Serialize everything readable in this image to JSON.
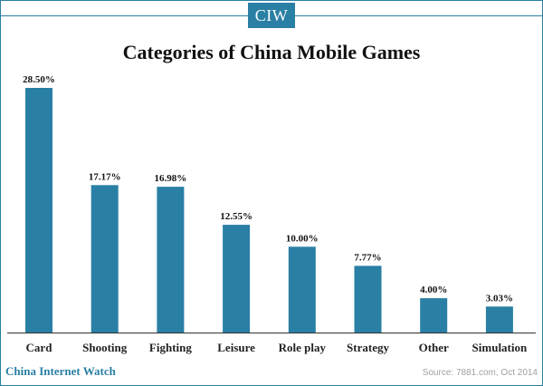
{
  "header": {
    "logo_text": "CIW"
  },
  "footer": {
    "brand": "China Internet Watch",
    "source": "Source: 7881.com, Oct 2014"
  },
  "colors": {
    "bar": "#2a7fa4",
    "accent": "#2a7fa4"
  },
  "chart_data": {
    "type": "bar",
    "title": "Categories of China Mobile Games",
    "categories": [
      "Card",
      "Shooting",
      "Fighting",
      "Leisure",
      "Role play",
      "Strategy",
      "Other",
      "Simulation"
    ],
    "values": [
      28.5,
      17.17,
      16.98,
      12.55,
      10.0,
      7.77,
      4.0,
      3.03
    ],
    "data_labels": [
      "28.50%",
      "17.17%",
      "16.98%",
      "12.55%",
      "10.00%",
      "7.77%",
      "4.00%",
      "3.03%"
    ],
    "xlabel": "",
    "ylabel": "",
    "ylim": [
      0,
      28.5
    ],
    "grid": false,
    "legend": "none"
  }
}
